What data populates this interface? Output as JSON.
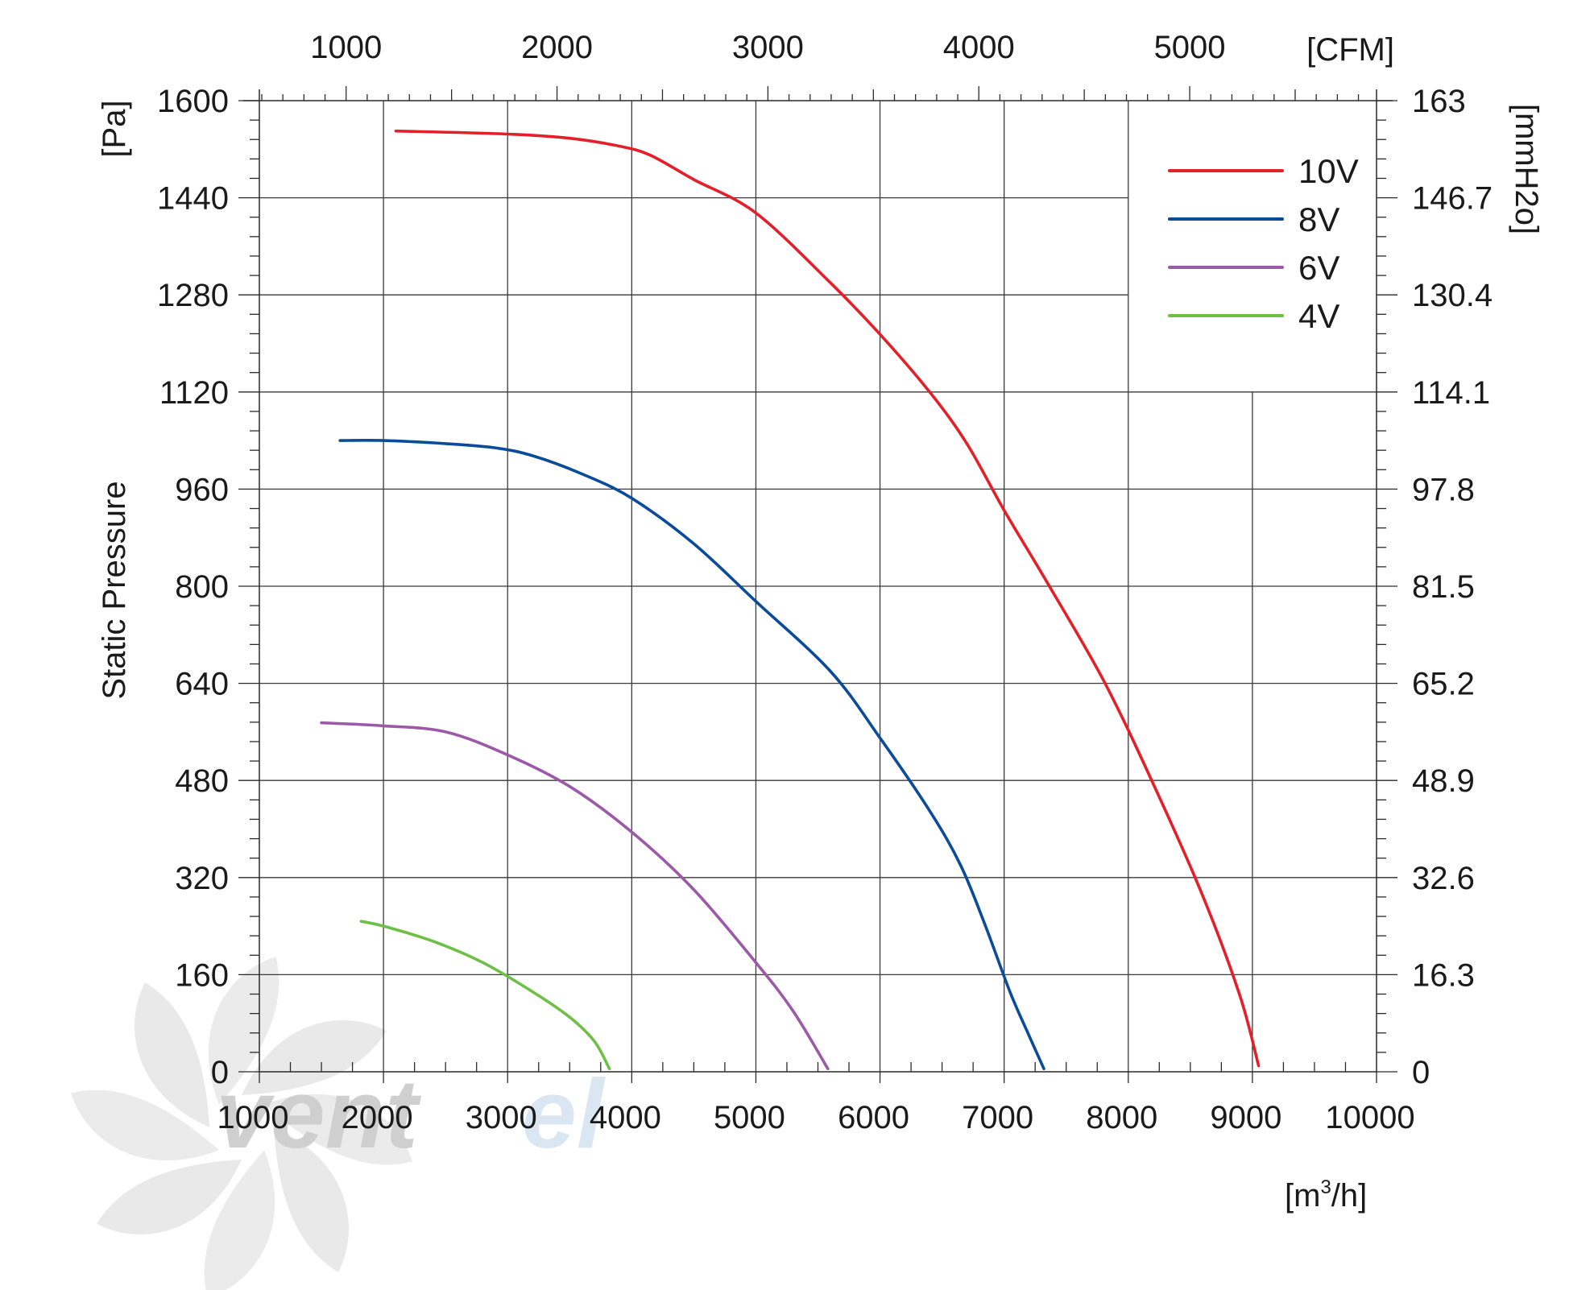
{
  "chart_data": {
    "type": "line",
    "title": "",
    "ylabel": "Static Pressure",
    "ylabel_unit": "[Pa]",
    "xlabel_unit_base": "[m",
    "xlabel_unit_sup": "3",
    "xlabel_unit_tail": "/h]",
    "x2label_unit": "[CFM]",
    "y2label_unit": "[mmH2o]",
    "xlim": [
      1000,
      10000
    ],
    "ylim": [
      0,
      1600
    ],
    "x_ticks": [
      1000,
      2000,
      3000,
      4000,
      5000,
      6000,
      7000,
      8000,
      9000,
      10000
    ],
    "x_tick_labels": [
      "1000",
      "2000",
      "3000",
      "4000",
      "5000",
      "6000",
      "7000",
      "8000",
      "9000",
      "10000"
    ],
    "y_ticks": [
      0,
      160,
      320,
      480,
      640,
      800,
      960,
      1120,
      1280,
      1440,
      1600
    ],
    "y_tick_labels": [
      "0",
      "160",
      "320",
      "480",
      "640",
      "800",
      "960",
      "1120",
      "1280",
      "1440",
      "1600"
    ],
    "cfm_ticks": [
      1000,
      2000,
      3000,
      4000,
      5000
    ],
    "cfm_tick_labels": [
      "1000",
      "2000",
      "3000",
      "4000",
      "5000"
    ],
    "mmh2o_tick_labels": [
      "0",
      "16.3",
      "32.6",
      "48.9",
      "65.2",
      "81.5",
      "97.8",
      "114.1",
      "130.4",
      "146.7",
      "163"
    ],
    "grid": true,
    "legend_position": "top-right",
    "series": [
      {
        "name": "10V",
        "color": "#e3202a",
        "x": [
          2100,
          3000,
          3500,
          3900,
          4150,
          4500,
          5000,
          5600,
          6000,
          6400,
          6700,
          7000,
          7350,
          7800,
          8200,
          8600,
          8900,
          9050
        ],
        "y": [
          1550,
          1545,
          1538,
          1525,
          1510,
          1470,
          1415,
          1300,
          1215,
          1120,
          1035,
          925,
          805,
          645,
          475,
          290,
          125,
          10
        ]
      },
      {
        "name": "8V",
        "color": "#0a4b9a",
        "x": [
          1650,
          2000,
          2500,
          2900,
          3200,
          3600,
          4000,
          4500,
          5000,
          5600,
          6000,
          6400,
          6650,
          6850,
          7050,
          7200,
          7320
        ],
        "y": [
          1040,
          1040,
          1035,
          1028,
          1015,
          985,
          945,
          870,
          775,
          660,
          550,
          430,
          340,
          240,
          130,
          60,
          5
        ]
      },
      {
        "name": "6V",
        "color": "#9b59a7",
        "x": [
          1500,
          2000,
          2500,
          3000,
          3500,
          4000,
          4500,
          5000,
          5300,
          5580
        ],
        "y": [
          575,
          570,
          560,
          522,
          470,
          395,
          300,
          180,
          100,
          5
        ]
      },
      {
        "name": "4V",
        "color": "#6ebf45",
        "x": [
          1820,
          2000,
          2400,
          2800,
          3200,
          3500,
          3700,
          3820
        ],
        "y": [
          248,
          240,
          215,
          180,
          132,
          90,
          50,
          5
        ]
      }
    ]
  }
}
